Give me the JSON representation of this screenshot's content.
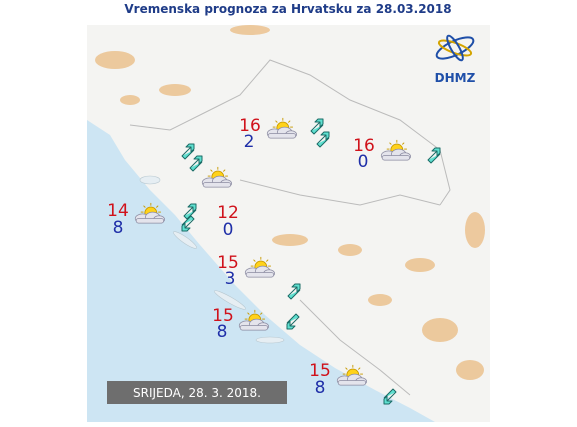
{
  "title": "Vremenska prognoza za Hrvatsku za 28.03.2018",
  "logo": "DHMZ",
  "date_label": "SRIJEDA, 28. 3. 2018.",
  "stations": [
    {
      "max": "16",
      "min": "2"
    },
    {
      "max": "16",
      "min": "0"
    },
    {
      "max": "14",
      "min": "8"
    },
    {
      "max": "12",
      "min": "0"
    },
    {
      "max": "15",
      "min": "3"
    },
    {
      "max": "15",
      "min": "8"
    },
    {
      "max": "15",
      "min": "8"
    }
  ]
}
